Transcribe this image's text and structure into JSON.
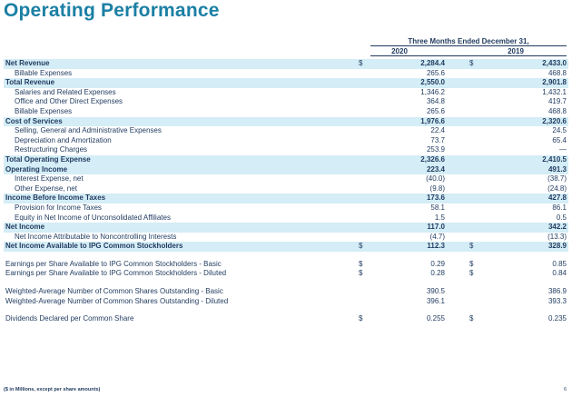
{
  "title": "Operating Performance",
  "header": {
    "period": "Three Months Ended December 31,",
    "year1": "2020",
    "year2": "2019"
  },
  "rows": [
    {
      "label": "Net Revenue",
      "d1": "$",
      "v1": "2,284.4",
      "d2": "$",
      "v2": "2,433.0"
    },
    {
      "label": "Billable Expenses",
      "d1": "",
      "v1": "265.6",
      "d2": "",
      "v2": "468.8"
    },
    {
      "label": "Total Revenue",
      "d1": "",
      "v1": "2,550.0",
      "d2": "",
      "v2": "2,901.8"
    },
    {
      "label": "Salaries and Related Expenses",
      "d1": "",
      "v1": "1,346.2",
      "d2": "",
      "v2": "1,432.1"
    },
    {
      "label": "Office and Other Direct Expenses",
      "d1": "",
      "v1": "364.8",
      "d2": "",
      "v2": "419.7"
    },
    {
      "label": "Billable Expenses",
      "d1": "",
      "v1": "265.6",
      "d2": "",
      "v2": "468.8"
    },
    {
      "label": "Cost of Services",
      "d1": "",
      "v1": "1,976.6",
      "d2": "",
      "v2": "2,320.6"
    },
    {
      "label": "Selling, General and Administrative Expenses",
      "d1": "",
      "v1": "22.4",
      "d2": "",
      "v2": "24.5"
    },
    {
      "label": "Depreciation and Amortization",
      "d1": "",
      "v1": "73.7",
      "d2": "",
      "v2": "65.4"
    },
    {
      "label": "Restructuring Charges",
      "d1": "",
      "v1": "253.9",
      "d2": "",
      "v2": "—"
    },
    {
      "label": "Total Operating Expense",
      "d1": "",
      "v1": "2,326.6",
      "d2": "",
      "v2": "2,410.5"
    },
    {
      "label": "Operating Income",
      "d1": "",
      "v1": "223.4",
      "d2": "",
      "v2": "491.3"
    },
    {
      "label": "Interest Expense, net",
      "d1": "",
      "v1": "(40.0)",
      "d2": "",
      "v2": "(38.7)"
    },
    {
      "label": "Other Expense, net",
      "d1": "",
      "v1": "(9.8)",
      "d2": "",
      "v2": "(24.8)"
    },
    {
      "label": "Income Before Income Taxes",
      "d1": "",
      "v1": "173.6",
      "d2": "",
      "v2": "427.8"
    },
    {
      "label": "Provision for Income Taxes",
      "d1": "",
      "v1": "58.1",
      "d2": "",
      "v2": "86.1"
    },
    {
      "label": "Equity in Net Income of Unconsolidated Affiliates",
      "d1": "",
      "v1": "1.5",
      "d2": "",
      "v2": "0.5"
    },
    {
      "label": "Net Income",
      "d1": "",
      "v1": "117.0",
      "d2": "",
      "v2": "342.2"
    },
    {
      "label": "Net Income Attributable to Noncontrolling Interests",
      "d1": "",
      "v1": "(4.7)",
      "d2": "",
      "v2": "(13.3)"
    },
    {
      "label": "Net Income Available to IPG Common Stockholders",
      "d1": "$",
      "v1": "112.3",
      "d2": "$",
      "v2": "328.9"
    },
    {
      "label": "Earnings per Share Available to IPG Common Stockholders - Basic",
      "d1": "$",
      "v1": "0.29",
      "d2": "$",
      "v2": "0.85"
    },
    {
      "label": "Earnings per Share Available to IPG Common Stockholders - Diluted",
      "d1": "$",
      "v1": "0.28",
      "d2": "$",
      "v2": "0.84"
    },
    {
      "label": "Weighted-Average Number of Common Shares Outstanding - Basic",
      "d1": "",
      "v1": "390.5",
      "d2": "",
      "v2": "386.9"
    },
    {
      "label": "Weighted-Average Number of Common Shares Outstanding - Diluted",
      "d1": "",
      "v1": "396.1",
      "d2": "",
      "v2": "393.3"
    },
    {
      "label": "Dividends Declared per Common Share",
      "d1": "$",
      "v1": "0.255",
      "d2": "$",
      "v2": "0.235"
    }
  ],
  "footnote": "($ in Millions, except per share amounts)",
  "page_number": "6"
}
